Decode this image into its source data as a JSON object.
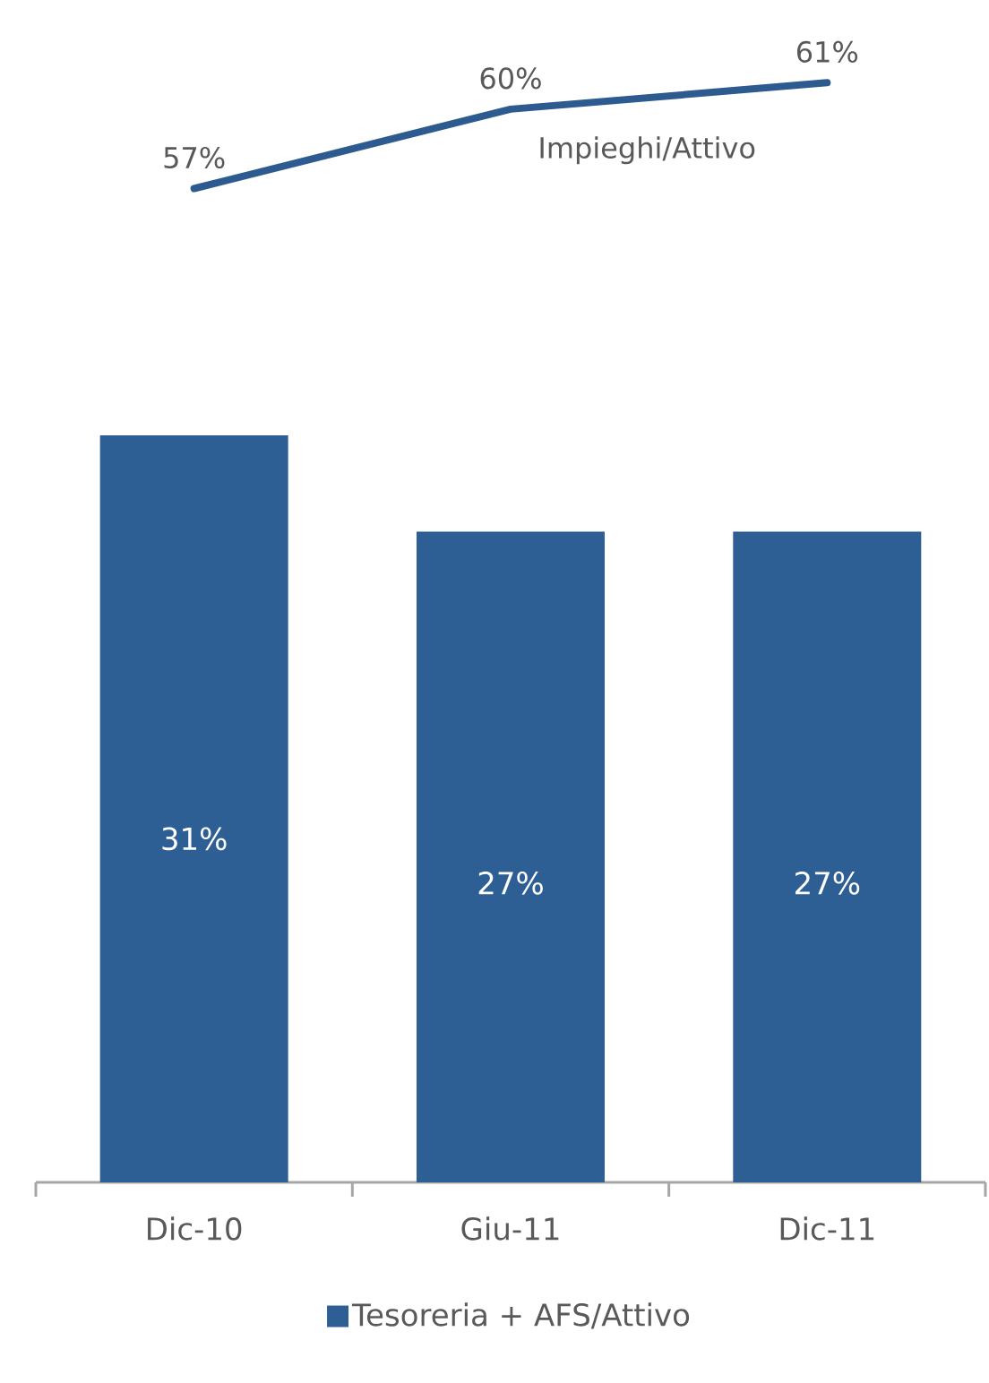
{
  "chart_data": [
    {
      "type": "line",
      "categories": [
        null,
        null,
        null
      ],
      "tick_labels": false,
      "series": [
        {
          "name": "Impieghi/Attivo",
          "color": "#2e5b8f",
          "values": [
            57,
            60,
            61
          ],
          "value_labels": [
            "57%",
            "60%",
            "61%"
          ]
        }
      ]
    },
    {
      "type": "bar",
      "categories": [
        "Dic-10",
        "Giu-11",
        "Dic-11"
      ],
      "legend": "bottom",
      "series": [
        {
          "name": "Tesoreria + AFS/Attivo",
          "color": "#2e5f94",
          "values": [
            31,
            27,
            27
          ],
          "value_labels": [
            "31%",
            "27%",
            "27%"
          ]
        }
      ]
    }
  ]
}
